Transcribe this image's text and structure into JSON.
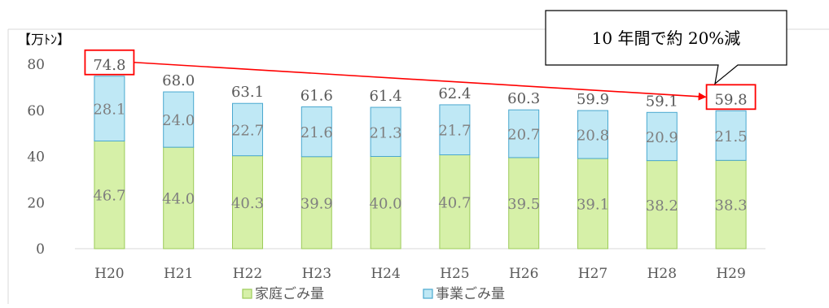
{
  "chart_data": {
    "type": "bar",
    "stacked": true,
    "unit_label": "【万ﾄﾝ】",
    "categories": [
      "H20",
      "H21",
      "H22",
      "H23",
      "H24",
      "H25",
      "H26",
      "H27",
      "H28",
      "H29"
    ],
    "series": [
      {
        "name": "家庭ごみ量",
        "color": "#d6f0a8",
        "values": [
          46.7,
          44.0,
          40.3,
          39.9,
          40.0,
          40.7,
          39.5,
          39.1,
          38.2,
          38.3
        ]
      },
      {
        "name": "事業ごみ量",
        "color": "#bfe8f5",
        "values": [
          28.1,
          24.0,
          22.7,
          21.6,
          21.3,
          21.7,
          20.7,
          20.8,
          20.9,
          21.5
        ]
      }
    ],
    "totals": [
      "74.8",
      "68.0",
      "63.1",
      "61.6",
      "61.4",
      "62.4",
      "60.3",
      "59.9",
      "59.1",
      "59.8"
    ],
    "ylim": [
      0,
      80
    ],
    "yticks": [
      0,
      20,
      40,
      60,
      80
    ],
    "grid": false,
    "legend_position": "bottom",
    "highlighted_categories": [
      "H20",
      "H29"
    ],
    "annotation": "10 年間で約 20%減"
  },
  "colors": {
    "household_fill": "#d6f0a8",
    "household_stroke": "#9ccb5a",
    "business_fill": "#bfe8f5",
    "business_stroke": "#4aa8cf",
    "highlight": "#ff0000",
    "axis": "#d9d9d9"
  }
}
